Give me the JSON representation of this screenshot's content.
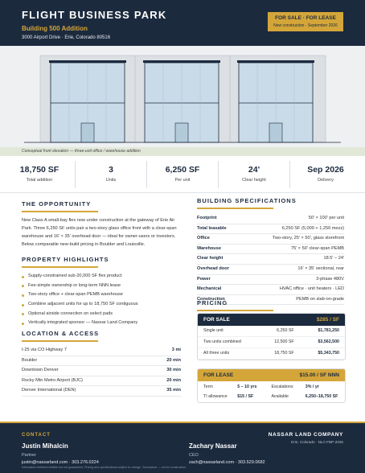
{
  "header": {
    "title": "FLIGHT BUSINESS PARK",
    "subtitle": "Building 500 Addition",
    "address": "3000 Airport Drive · Erie, Colorado 80516",
    "badge": {
      "status": "FOR SALE · FOR LEASE",
      "note": "New construction · September 2026"
    }
  },
  "image": {
    "caption": "Conceptual front elevation — three-unit office / warehouse addition"
  },
  "stats": [
    {
      "value": "18,750 SF",
      "label": "Total addition"
    },
    {
      "value": "3",
      "label": "Units"
    },
    {
      "value": "6,250 SF",
      "label": "Per unit"
    },
    {
      "value": "24'",
      "label": "Clear height"
    },
    {
      "value": "Sep 2026",
      "label": "Delivery"
    }
  ],
  "opportunity": {
    "title": "THE OPPORTUNITY",
    "text": "New Class A small-bay flex now under construction at the gateway of Erie Air Park. Three 6,250 SF units pair a two-story glass office front with a clear-span warehouse and 16' × 35' overhead door — ideal for owner-users or investors. Below comparable new-build pricing in Boulder and Louisville."
  },
  "highlights": {
    "title": "PROPERTY HIGHLIGHTS",
    "items": [
      "Supply-constrained sub-20,000 SF flex product",
      "Fee-simple ownership or long-term NNN lease",
      "Two-story office + clear-span PEMB warehouse",
      "Combine adjacent units for up to 18,750 SF contiguous",
      "Optional airside connection on select pads",
      "Vertically integrated sponsor — Nassar Land Company"
    ]
  },
  "location": {
    "title": "LOCATION & ACCESS",
    "rows": [
      [
        "I-25 via CO Highway 7",
        "3 mi"
      ],
      [
        "Boulder",
        "20 min"
      ],
      [
        "Downtown Denver",
        "30 min"
      ],
      [
        "Rocky Mtn Metro Airport (BJC)",
        "20 min"
      ],
      [
        "Denver International (DEN)",
        "35 min"
      ]
    ]
  },
  "specs": {
    "title": "BUILDING SPECIFICATIONS",
    "rows": [
      [
        "Footprint",
        "50' × 100' per unit"
      ],
      [
        "Total leasable",
        "6,250 SF (5,000 + 1,250 mezz)"
      ],
      [
        "Office",
        "Two-story, 25' × 50', glass storefront"
      ],
      [
        "Warehouse",
        "75' × 50' clear-span PEMB"
      ],
      [
        "Clear height",
        "18.5' – 24'"
      ],
      [
        "Overhead door",
        "16' × 35' sectional, rear"
      ],
      [
        "Power",
        "3-phase 480V"
      ],
      [
        "Mechanical",
        "HVAC office · unit heaters · LED"
      ],
      [
        "Construction",
        "PEMB on slab-on-grade"
      ]
    ]
  },
  "pricing": {
    "title": "PRICING",
    "sale": {
      "label": "FOR SALE",
      "rate": "$285 / SF",
      "rows": [
        [
          "Single unit",
          "6,250 SF",
          "$1,781,250"
        ],
        [
          "Two units combined",
          "12,500 SF",
          "$3,562,500"
        ],
        [
          "All three units",
          "18,750 SF",
          "$5,343,750"
        ]
      ]
    },
    "lease": {
      "label": "FOR LEASE",
      "rate": "$15.00 / SF NNN",
      "terms": [
        [
          "Term",
          "5 – 10 yrs"
        ],
        [
          "Escalations",
          "3% / yr"
        ],
        [
          "TI allowance",
          "$15 / SF"
        ],
        [
          "Available",
          "6,250–18,750 SF"
        ]
      ]
    }
  },
  "footer": {
    "heading": "CONTACT",
    "contacts": [
      {
        "name": "Justin Mihalcin",
        "role": "Partner",
        "contact": "justin@nassarland.com · 303.276.0224"
      },
      {
        "name": "Zachary Nassar",
        "role": "CEO",
        "contact": "zach@nassarland.com · 303.529.0682"
      }
    ],
    "company": "NASSAR LAND COMPANY",
    "company_note": "Erie, Colorado · NLC-FBP-2026",
    "disclaimer": "Information believed reliable but not guaranteed. Pricing and specifications subject to change. Conceptual — not for construction."
  }
}
